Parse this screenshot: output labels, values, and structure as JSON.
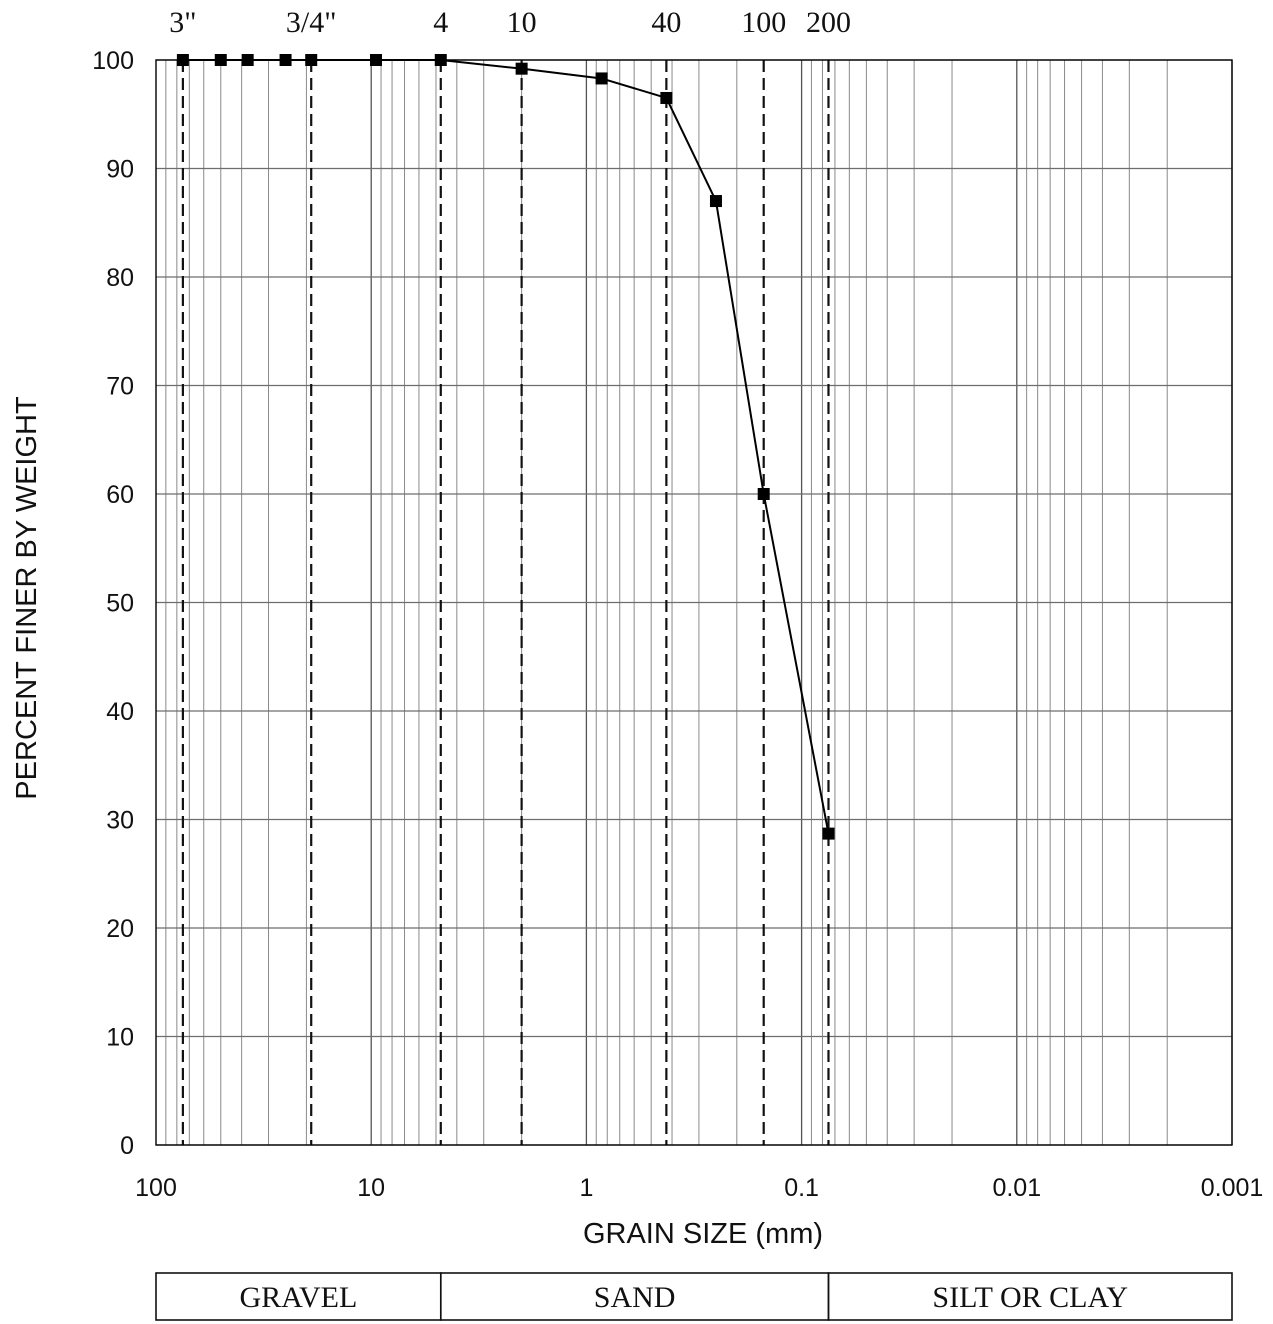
{
  "chart_data": {
    "type": "line",
    "title": "",
    "xlabel": "GRAIN SIZE (mm)",
    "ylabel": "PERCENT FINER BY WEIGHT",
    "x_scale": "log",
    "x_reversed": true,
    "xlim": [
      100,
      0.001
    ],
    "ylim": [
      0,
      100
    ],
    "x_tick_labels": [
      "100",
      "10",
      "1",
      "0.1",
      "0.01",
      "0.001"
    ],
    "y_tick_labels": [
      "0",
      "10",
      "20",
      "30",
      "40",
      "50",
      "60",
      "70",
      "80",
      "90",
      "100"
    ],
    "grid": true,
    "sieves": [
      {
        "label": "3\"",
        "size": 75
      },
      {
        "label": "3/4\"",
        "size": 19
      },
      {
        "label": "4",
        "size": 4.75
      },
      {
        "label": "10",
        "size": 2.0
      },
      {
        "label": "40",
        "size": 0.425
      },
      {
        "label": "100",
        "size": 0.15
      },
      {
        "label": "200",
        "size": 0.075
      }
    ],
    "series": [
      {
        "x": [
          75,
          50,
          37.5,
          25,
          19,
          9.5,
          4.75,
          2.0,
          0.85,
          0.425,
          0.25,
          0.15,
          0.075
        ],
        "y": [
          100,
          100,
          100,
          100,
          100,
          100,
          100,
          99.2,
          98.3,
          96.5,
          87,
          60,
          28.7
        ]
      }
    ],
    "classification": [
      {
        "label": "GRAVEL",
        "from": 100,
        "to": 4.75
      },
      {
        "label": "SAND",
        "from": 4.75,
        "to": 0.075
      },
      {
        "label": "SILT OR CLAY",
        "from": 0.075,
        "to": 0.001
      }
    ]
  }
}
